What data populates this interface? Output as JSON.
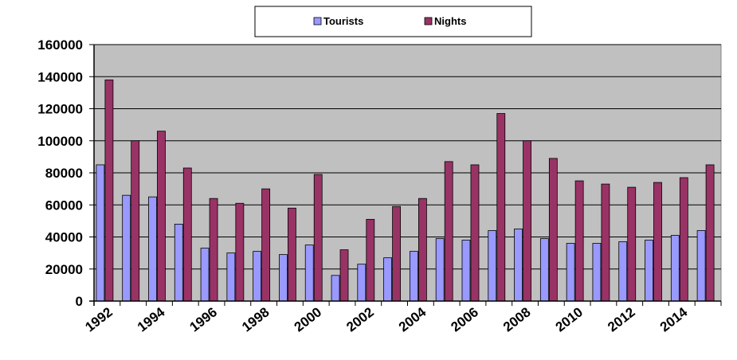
{
  "chart_data": {
    "type": "bar",
    "categories": [
      "1992",
      "1993",
      "1994",
      "1995",
      "1996",
      "1997",
      "1998",
      "1999",
      "2000",
      "2001",
      "2002",
      "2003",
      "2004",
      "2005",
      "2006",
      "2007",
      "2008",
      "2009",
      "2010",
      "2011",
      "2012",
      "2013",
      "2014",
      "2015"
    ],
    "tick_labels": [
      "1992",
      "1994",
      "1996",
      "1998",
      "2000",
      "2002",
      "2004",
      "2006",
      "2008",
      "2010",
      "2012",
      "2014"
    ],
    "series": [
      {
        "name": "Tourists",
        "color": "#9999ff",
        "values": [
          85000,
          66000,
          65000,
          48000,
          33000,
          30000,
          31000,
          29000,
          35000,
          16000,
          23000,
          27000,
          31000,
          39000,
          38000,
          44000,
          45000,
          39000,
          36000,
          36000,
          37000,
          38000,
          41000,
          44000
        ]
      },
      {
        "name": "Nights",
        "color": "#993366",
        "values": [
          138000,
          100000,
          106000,
          83000,
          64000,
          61000,
          70000,
          58000,
          79000,
          32000,
          51000,
          59000,
          64000,
          87000,
          85000,
          117000,
          100000,
          89000,
          75000,
          73000,
          71000,
          74000,
          77000,
          85000
        ]
      }
    ],
    "ylim": [
      0,
      160000
    ],
    "yticks": [
      0,
      20000,
      40000,
      60000,
      80000,
      100000,
      120000,
      140000,
      160000
    ],
    "grid": true,
    "plot_background": "#c0c0c0",
    "legend_position": "top"
  }
}
